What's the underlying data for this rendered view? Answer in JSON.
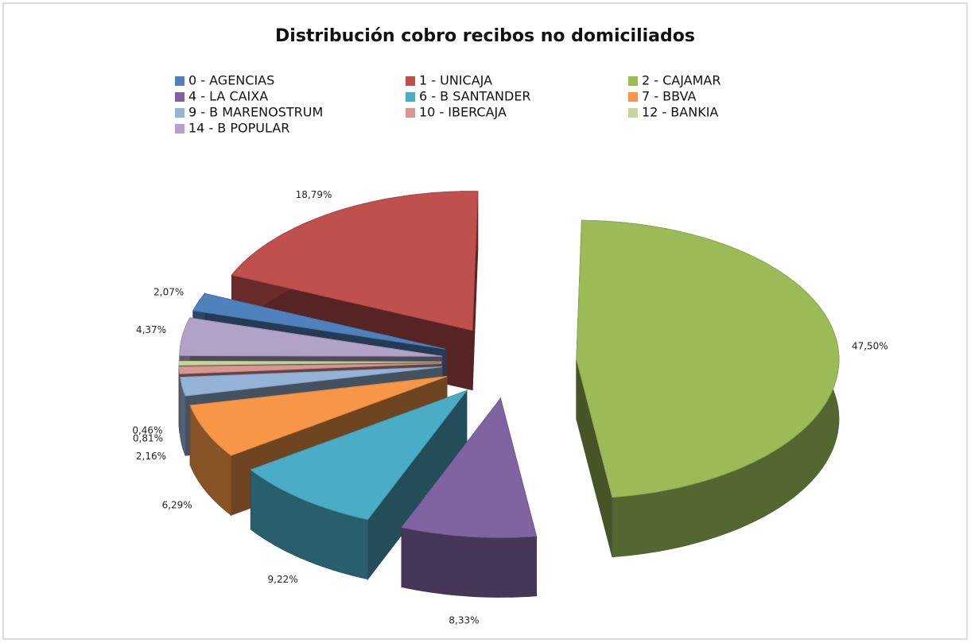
{
  "chart_data": {
    "type": "pie3d",
    "title": "Distribución cobro recibos no domiciliados",
    "categories": [
      "0 - AGENCIAS",
      "1 - UNICAJA",
      "2 - CAJAMAR",
      "4 - LA CAIXA",
      "6 - B SANTANDER",
      "7 - BBVA",
      "9  - B MARENOSTRUM",
      "10 - IBERCAJA",
      "12 - BANKIA",
      "14 - B POPULAR"
    ],
    "values": [
      2.07,
      18.79,
      47.5,
      8.33,
      9.22,
      6.29,
      2.16,
      0.81,
      0.46,
      4.37
    ],
    "value_labels": [
      "2,07%",
      "18,79%",
      "47,50%",
      "8,33%",
      "9,22%",
      "6,29%",
      "2,16%",
      "0,81%",
      "0,46%",
      "4,37%"
    ],
    "colors": [
      "#4f81bd",
      "#c0504d",
      "#9bbb59",
      "#8064a2",
      "#4bacc6",
      "#f79646",
      "#95b3d7",
      "#d99694",
      "#c3d69b",
      "#b2a2c7"
    ],
    "legend": "top"
  }
}
